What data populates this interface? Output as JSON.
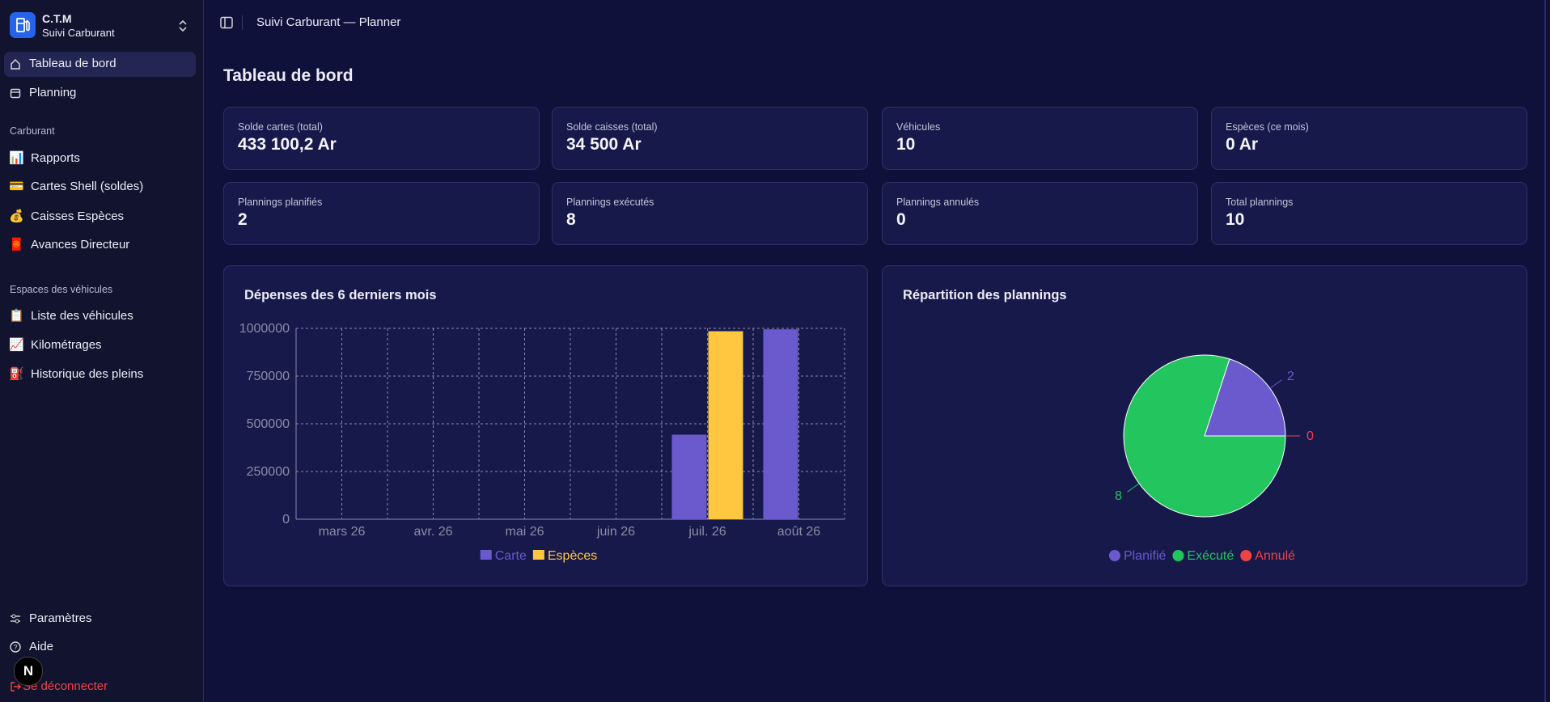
{
  "sidebar": {
    "brand": {
      "name": "C.T.M",
      "subtitle": "Suivi Carburant"
    },
    "main_items": [
      {
        "label": "Tableau de bord",
        "active": true
      },
      {
        "label": "Planning"
      }
    ],
    "sections": [
      {
        "title": "Carburant",
        "items": [
          {
            "icon": "📊",
            "label": "Rapports"
          },
          {
            "icon": "💳",
            "label": "Cartes Shell (soldes)"
          },
          {
            "icon": "💰",
            "label": "Caisses Espèces"
          },
          {
            "icon": "🧧",
            "label": "Avances Directeur"
          }
        ]
      },
      {
        "title": "Espaces des véhicules",
        "items": [
          {
            "icon": "📋",
            "label": "Liste des véhicules"
          },
          {
            "icon": "📈",
            "label": "Kilométrages"
          },
          {
            "icon": "⛽",
            "label": "Historique des pleins"
          }
        ]
      }
    ],
    "footer_items": [
      {
        "label": "Paramètres"
      },
      {
        "label": "Aide"
      },
      {
        "label": "Se déconnecter"
      }
    ],
    "dev_badge": "N"
  },
  "header": {
    "breadcrumb": "Suivi Carburant — Planner"
  },
  "page_title": "Tableau de bord",
  "stats": [
    {
      "label": "Solde cartes (total)",
      "value": "433 100,2 Ar"
    },
    {
      "label": "Solde caisses (total)",
      "value": "34 500 Ar"
    },
    {
      "label": "Véhicules",
      "value": "10"
    },
    {
      "label": "Espèces (ce mois)",
      "value": "0 Ar"
    },
    {
      "label": "Plannings planifiés",
      "value": "2"
    },
    {
      "label": "Plannings exécutés",
      "value": "8"
    },
    {
      "label": "Plannings annulés",
      "value": "0"
    },
    {
      "label": "Total plannings",
      "value": "10"
    }
  ],
  "chart_data": [
    {
      "type": "bar",
      "title": "Dépenses des 6 derniers mois",
      "categories": [
        "mars 26",
        "avr. 26",
        "mai 26",
        "juin 26",
        "juil. 26",
        "août 26"
      ],
      "series": [
        {
          "name": "Carte",
          "color": "#6a5acd",
          "values": [
            0,
            0,
            0,
            0,
            443000,
            995000
          ]
        },
        {
          "name": "Espèces",
          "color": "#ffc640",
          "values": [
            0,
            0,
            0,
            0,
            985000,
            0
          ]
        }
      ],
      "ylim": [
        0,
        1000000
      ],
      "yticks": [
        0,
        250000,
        500000,
        750000,
        1000000
      ],
      "grid": true,
      "legend": "bottom"
    },
    {
      "type": "pie",
      "title": "Répartition des plannings",
      "categories": [
        "Planifié",
        "Exécuté",
        "Annulé"
      ],
      "values": [
        2,
        8,
        0
      ],
      "colors": [
        "#6a5acd",
        "#22c55e",
        "#ef4444"
      ],
      "legend": "bottom"
    }
  ]
}
